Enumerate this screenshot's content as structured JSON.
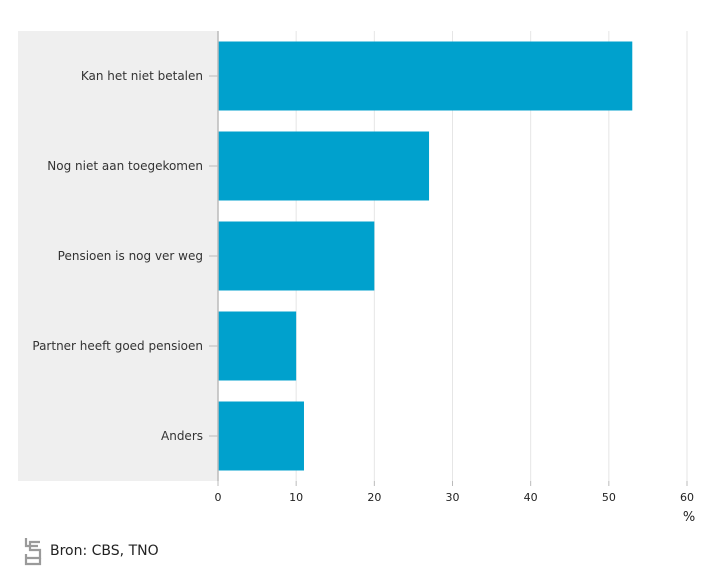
{
  "chart_data": {
    "type": "bar",
    "orientation": "horizontal",
    "categories": [
      "Kan het niet betalen",
      "Nog niet aan toegekomen",
      "Pensioen is nog ver weg",
      "Partner heeft goed pensioen",
      "Anders"
    ],
    "values": [
      53,
      27,
      20,
      10,
      11
    ],
    "xlim": [
      0,
      60
    ],
    "xticks": [
      0,
      10,
      20,
      30,
      40,
      50,
      60
    ],
    "xlabel": "%",
    "ylabel": "",
    "title": "",
    "grid": true,
    "legend": "none"
  },
  "colors": {
    "bar": "#00a1cd",
    "category_panel": "#efefef",
    "grid": "#e6e6e6",
    "axis": "#bbbbbb"
  },
  "source": {
    "text": "Bron: CBS, TNO",
    "icon": "cbs-logo-icon"
  }
}
